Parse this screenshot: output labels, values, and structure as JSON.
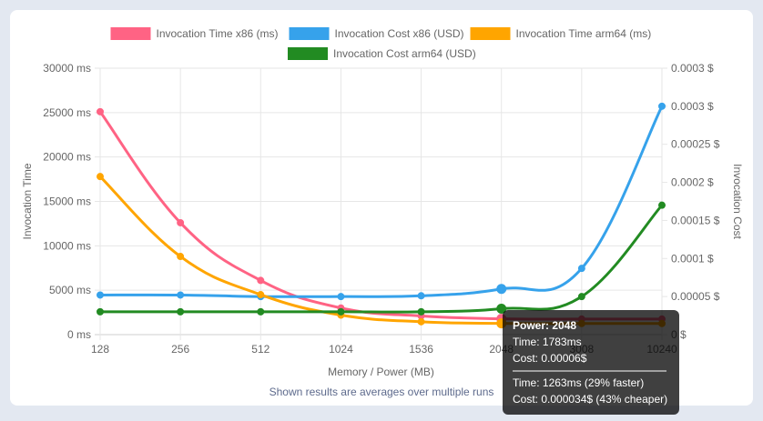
{
  "chart_data": {
    "type": "line",
    "x": [
      "128",
      "256",
      "512",
      "1024",
      "1536",
      "2048",
      "3008",
      "10240"
    ],
    "xlabel": "Memory / Power (MB)",
    "ylabel_left": "Invocation Time",
    "ylabel_right": "Invocation Cost",
    "yticks_left": [
      "30000 ms",
      "25000 ms",
      "20000 ms",
      "15000 ms",
      "10000 ms",
      "5000 ms",
      "0 ms"
    ],
    "yticks_right": [
      "0.0003 $",
      "0.0003 $",
      "0.00025 $",
      "0.0002 $",
      "0.00015 $",
      "0.0001 $",
      "0.00005 $",
      "0 $"
    ],
    "ylim_left": [
      0,
      30000
    ],
    "ylim_right": [
      0,
      0.00035
    ],
    "grid": true,
    "legend_position": "top",
    "series": [
      {
        "name": "Invocation Time x86 (ms)",
        "axis": "left",
        "color": "#ff6384",
        "values": [
          25100,
          12600,
          6100,
          3000,
          2100,
          1783,
          1750,
          1750
        ]
      },
      {
        "name": "Invocation Cost x86 (USD)",
        "axis": "right",
        "color": "#36a2eb",
        "values": [
          5.2e-05,
          5.2e-05,
          5e-05,
          5e-05,
          5.1e-05,
          6e-05,
          8.7e-05,
          0.0003
        ]
      },
      {
        "name": "Invocation Time arm64 (ms)",
        "axis": "left",
        "color": "#ffa500",
        "values": [
          17800,
          8800,
          4500,
          2200,
          1450,
          1263,
          1250,
          1250
        ]
      },
      {
        "name": "Invocation Cost arm64 (USD)",
        "axis": "right",
        "color": "#228b22",
        "values": [
          3e-05,
          3e-05,
          3e-05,
          3e-05,
          3e-05,
          3.4e-05,
          5e-05,
          0.00017
        ]
      }
    ],
    "footnote": "Shown results are averages over multiple runs",
    "tooltip": {
      "title": "Power: 2048",
      "line1": "Time: 1783ms",
      "line2": "Cost: 0.00006$",
      "line3": "Time: 1263ms (29% faster)",
      "line4": "Cost: 0.000034$ (43% cheaper)"
    }
  }
}
